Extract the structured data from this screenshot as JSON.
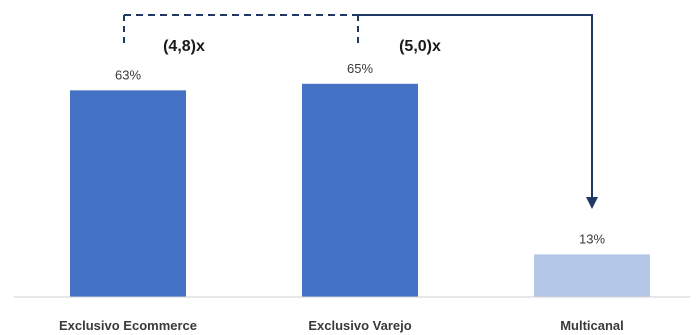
{
  "chart_data": {
    "type": "bar",
    "categories": [
      "Exclusivo Ecommerce",
      "Exclusivo Varejo",
      "Multicanal"
    ],
    "values": [
      63,
      65,
      13
    ],
    "data_labels": [
      "63%",
      "65%",
      "13%"
    ],
    "colors": [
      "#4472C4",
      "#4472C4",
      "#B4C7E7"
    ],
    "ylim": [
      0,
      100
    ],
    "grid": false,
    "legend": "none",
    "annotations": [
      {
        "from": "Exclusivo Ecommerce",
        "to": "Multicanal",
        "text": "(4,8)x"
      },
      {
        "from": "Exclusivo Varejo",
        "to": "Multicanal",
        "text": "(5,0)x"
      }
    ],
    "connector_color": "#1F3864"
  }
}
